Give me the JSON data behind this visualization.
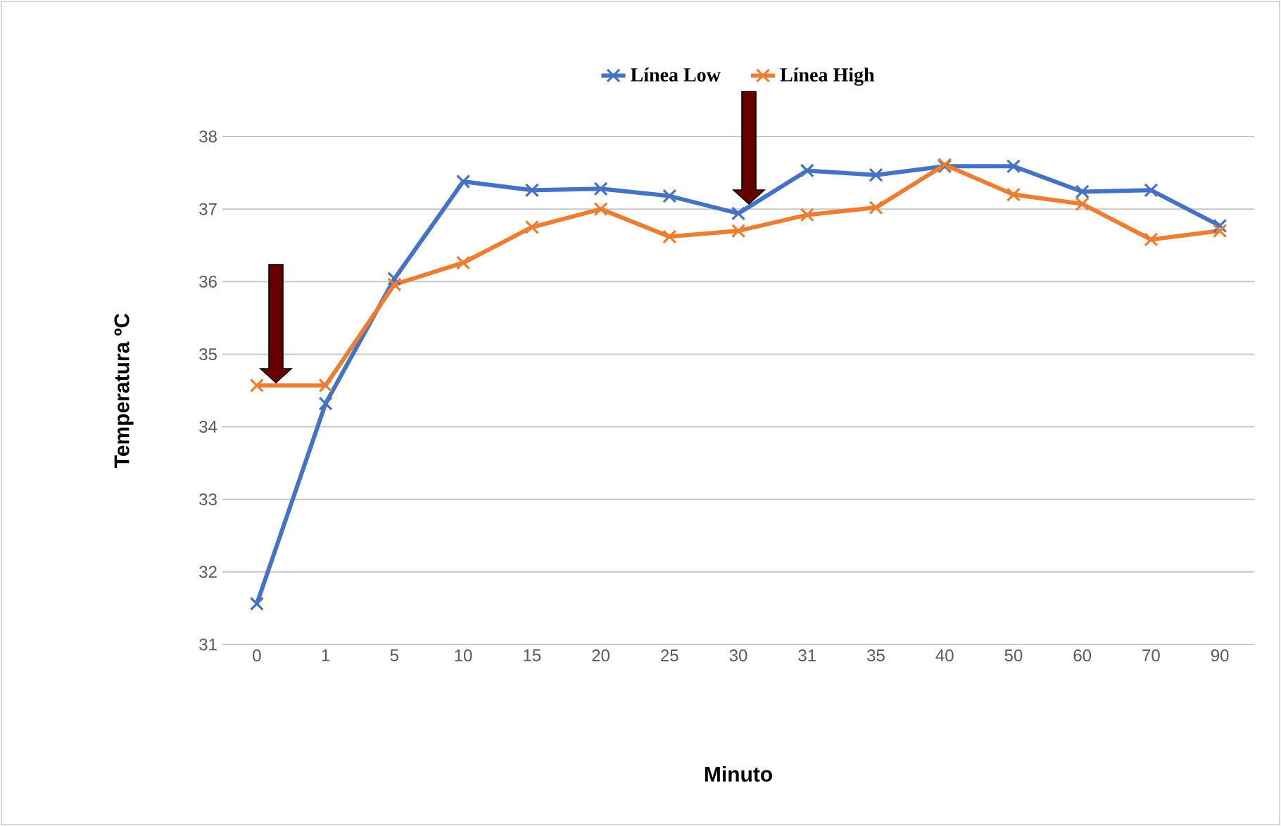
{
  "chart_data": {
    "type": "line",
    "xlabel": "Minuto",
    "ylabel": "Temperatura ºC",
    "categories": [
      "0",
      "1",
      "5",
      "10",
      "15",
      "20",
      "25",
      "30",
      "31",
      "35",
      "40",
      "50",
      "60",
      "70",
      "90"
    ],
    "series": [
      {
        "name": "Línea Low",
        "color": "#4472c4",
        "values": [
          31.56,
          34.32,
          36.04,
          37.38,
          37.26,
          37.28,
          37.18,
          36.94,
          37.53,
          37.47,
          37.59,
          37.59,
          37.24,
          37.26,
          36.77
        ]
      },
      {
        "name": "Línea High",
        "color": "#ed7d31",
        "values": [
          34.57,
          34.57,
          35.96,
          36.26,
          36.75,
          37.0,
          36.62,
          36.7,
          36.92,
          37.02,
          37.61,
          37.2,
          37.07,
          36.58,
          36.7
        ]
      }
    ],
    "ylim": [
      31,
      38
    ],
    "yticks": [
      31,
      32,
      33,
      34,
      35,
      36,
      37,
      38
    ],
    "grid": "y",
    "legend": "top",
    "marker": "cross",
    "line_style": "solid"
  }
}
